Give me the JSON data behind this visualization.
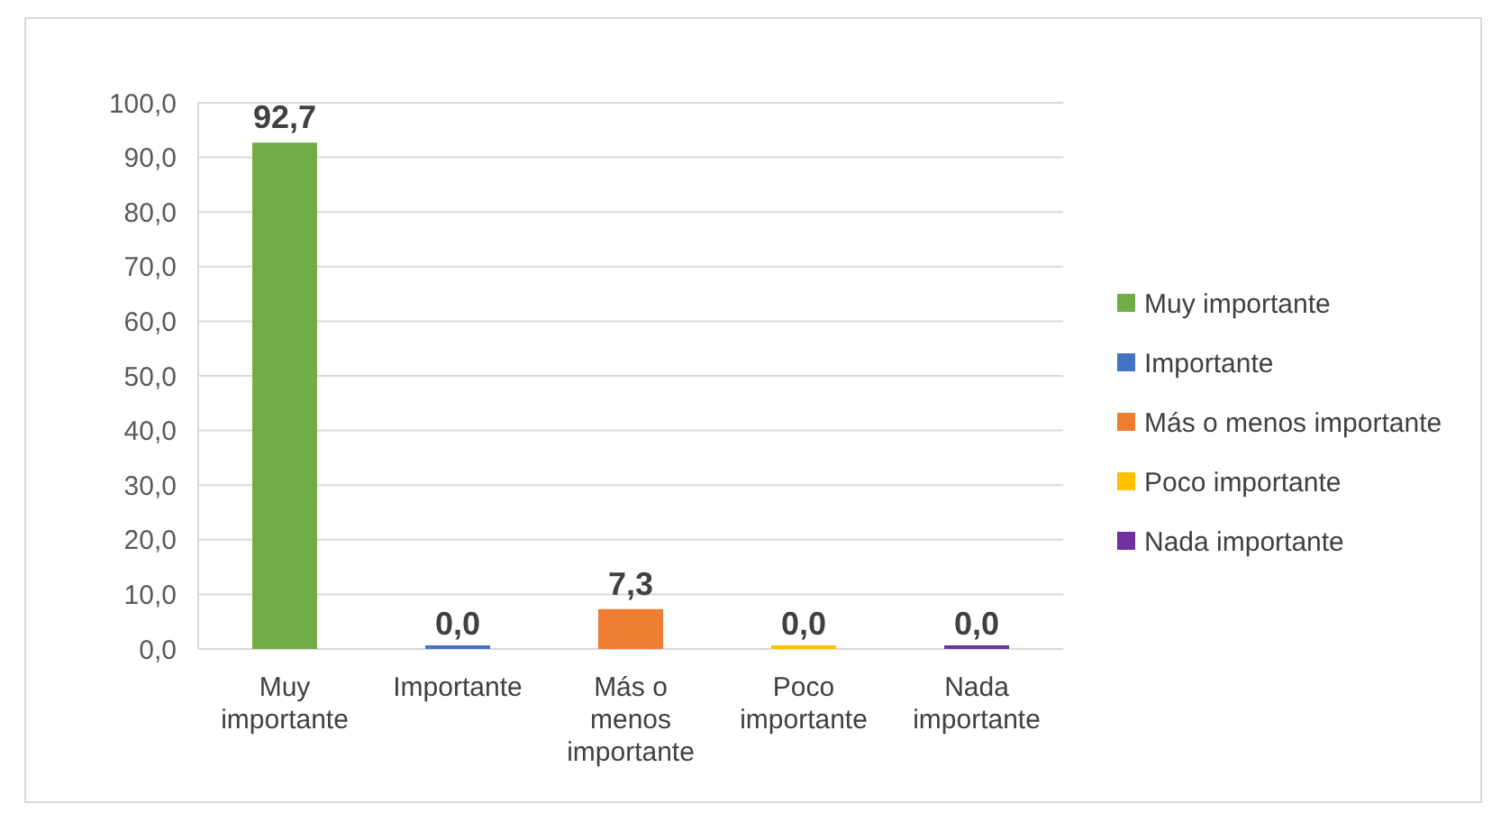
{
  "chart_data": {
    "type": "bar",
    "categories": [
      "Muy importante",
      "Importante",
      "Más o menos importante",
      "Poco importante",
      "Nada importante"
    ],
    "series": [
      {
        "name": "Muy importante",
        "color": "#70ad47",
        "values": [
          92.7,
          null,
          null,
          null,
          null
        ],
        "value_labels": [
          "92,7",
          null,
          null,
          null,
          null
        ]
      },
      {
        "name": "Importante",
        "color": "#4472c4",
        "values": [
          null,
          0,
          null,
          null,
          null
        ],
        "value_labels": [
          null,
          "0,0",
          null,
          null,
          null
        ]
      },
      {
        "name": "Más o menos importante",
        "color": "#ed7d31",
        "values": [
          null,
          null,
          7.3,
          null,
          null
        ],
        "value_labels": [
          null,
          null,
          "7,3",
          null,
          null
        ]
      },
      {
        "name": "Poco importante",
        "color": "#ffc000",
        "values": [
          null,
          null,
          null,
          0,
          null
        ],
        "value_labels": [
          null,
          null,
          null,
          "0,0",
          null
        ]
      },
      {
        "name": "Nada importante",
        "color": "#7030a0",
        "values": [
          null,
          null,
          null,
          null,
          0
        ],
        "value_labels": [
          null,
          null,
          null,
          null,
          "0,0"
        ]
      }
    ],
    "ylim": [
      0,
      100
    ],
    "yticks": [
      {
        "value": 0,
        "label": "0,0"
      },
      {
        "value": 10,
        "label": "10,0"
      },
      {
        "value": 20,
        "label": "20,0"
      },
      {
        "value": 30,
        "label": "30,0"
      },
      {
        "value": 40,
        "label": "40,0"
      },
      {
        "value": 50,
        "label": "50,0"
      },
      {
        "value": 60,
        "label": "60,0"
      },
      {
        "value": 70,
        "label": "70,0"
      },
      {
        "value": 80,
        "label": "80,0"
      },
      {
        "value": 90,
        "label": "90,0"
      },
      {
        "value": 100,
        "label": "100,0"
      }
    ],
    "grid": "y",
    "legend": "right"
  }
}
